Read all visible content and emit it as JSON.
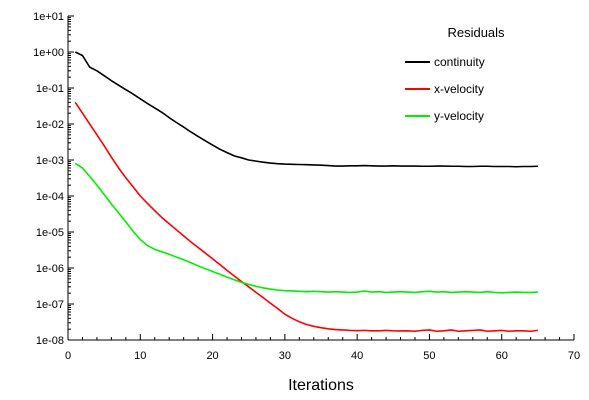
{
  "chart_data": {
    "type": "line",
    "xlabel": "Iterations",
    "ylabel": "",
    "xlim": [
      0,
      70
    ],
    "ylim": [
      1e-08,
      10
    ],
    "yscale": "log",
    "grid": false,
    "x_ticks": [
      0,
      10,
      20,
      30,
      40,
      50,
      60,
      70
    ],
    "x_tick_labels": [
      "0",
      "10",
      "20",
      "30",
      "40",
      "50",
      "60",
      "70"
    ],
    "y_ticks": [
      1e-08,
      1e-07,
      1e-06,
      1e-05,
      0.0001,
      0.001,
      0.01,
      0.1,
      1,
      10
    ],
    "y_tick_labels": [
      "1e-08",
      "1e-07",
      "1e-06",
      "1e-05",
      "1e-04",
      "1e-03",
      "1e-02",
      "1e-01",
      "1e+00",
      "1e+01"
    ],
    "legend": {
      "title": "Residuals",
      "position": "top-right"
    },
    "x": [
      1,
      2,
      3,
      4,
      5,
      6,
      7,
      8,
      9,
      10,
      11,
      12,
      13,
      14,
      15,
      16,
      17,
      18,
      19,
      20,
      21,
      22,
      23,
      24,
      25,
      26,
      27,
      28,
      29,
      30,
      31,
      32,
      33,
      34,
      35,
      36,
      37,
      38,
      39,
      40,
      41,
      42,
      43,
      44,
      45,
      46,
      47,
      48,
      49,
      50,
      51,
      52,
      53,
      54,
      55,
      56,
      57,
      58,
      59,
      60,
      61,
      62,
      63,
      64,
      65
    ],
    "series": [
      {
        "name": "continuity",
        "color": "#000000",
        "values": [
          1.0,
          0.8,
          0.38,
          0.3,
          0.22,
          0.16,
          0.12,
          0.09,
          0.068,
          0.05,
          0.037,
          0.028,
          0.021,
          0.015,
          0.011,
          0.0082,
          0.006,
          0.0045,
          0.0034,
          0.0026,
          0.002,
          0.0016,
          0.0013,
          0.00115,
          0.001,
          0.00093,
          0.00087,
          0.00082,
          0.00079,
          0.00077,
          0.00076,
          0.00075,
          0.00074,
          0.00073,
          0.00072,
          0.0007,
          0.00068,
          0.00068,
          0.00069,
          0.00069,
          0.0007,
          0.00069,
          0.00068,
          0.00068,
          0.00069,
          0.00068,
          0.00068,
          0.00068,
          0.00067,
          0.00067,
          0.00068,
          0.00068,
          0.00067,
          0.00067,
          0.00066,
          0.00066,
          0.00067,
          0.00067,
          0.00066,
          0.00066,
          0.00066,
          0.00065,
          0.00066,
          0.00066,
          0.00067
        ]
      },
      {
        "name": "x-velocity",
        "color": "#ff0000",
        "values": [
          0.04,
          0.02,
          0.01,
          0.005,
          0.0025,
          0.0012,
          0.0006,
          0.00032,
          0.00018,
          0.0001,
          6.2e-05,
          3.9e-05,
          2.5e-05,
          1.7e-05,
          1.15e-05,
          7.8e-06,
          5.3e-06,
          3.7e-06,
          2.6e-06,
          1.8e-06,
          1.25e-06,
          8.6e-07,
          6e-07,
          4.2e-07,
          3e-07,
          2.1e-07,
          1.5e-07,
          1.05e-07,
          7.5e-08,
          5.2e-08,
          4e-08,
          3.2e-08,
          2.7e-08,
          2.4e-08,
          2.2e-08,
          2.05e-08,
          1.95e-08,
          1.9e-08,
          1.85e-08,
          1.82e-08,
          1.85e-08,
          1.8e-08,
          1.8e-08,
          1.85e-08,
          1.8e-08,
          1.78e-08,
          1.8e-08,
          1.75e-08,
          1.85e-08,
          1.9e-08,
          1.75e-08,
          1.8e-08,
          1.9e-08,
          1.75e-08,
          1.8e-08,
          1.85e-08,
          1.9e-08,
          1.75e-08,
          1.8e-08,
          1.85e-08,
          1.75e-08,
          1.8e-08,
          1.8e-08,
          1.75e-08,
          1.85e-08
        ]
      },
      {
        "name": "y-velocity",
        "color": "#00ee00",
        "values": [
          0.0008,
          0.0006,
          0.00035,
          0.0002,
          0.00011,
          6e-05,
          3.4e-05,
          1.9e-05,
          1.05e-05,
          6.2e-06,
          4.2e-06,
          3.3e-06,
          2.8e-06,
          2.4e-06,
          2e-06,
          1.7e-06,
          1.4e-06,
          1.15e-06,
          9.5e-07,
          8e-07,
          6.7e-07,
          5.6e-07,
          4.7e-07,
          4e-07,
          3.5e-07,
          3.1e-07,
          2.8e-07,
          2.6e-07,
          2.45e-07,
          2.35e-07,
          2.3e-07,
          2.25e-07,
          2.2e-07,
          2.25e-07,
          2.2e-07,
          2.15e-07,
          2.2e-07,
          2.15e-07,
          2.1e-07,
          2.15e-07,
          2.3e-07,
          2.15e-07,
          2.2e-07,
          2.1e-07,
          2.15e-07,
          2.2e-07,
          2.15e-07,
          2.1e-07,
          2.2e-07,
          2.25e-07,
          2.15e-07,
          2.2e-07,
          2.1e-07,
          2.15e-07,
          2.2e-07,
          2.15e-07,
          2.1e-07,
          2.2e-07,
          2.1e-07,
          2.05e-07,
          2.1e-07,
          2.15e-07,
          2.1e-07,
          2.1e-07,
          2.15e-07
        ]
      }
    ]
  }
}
